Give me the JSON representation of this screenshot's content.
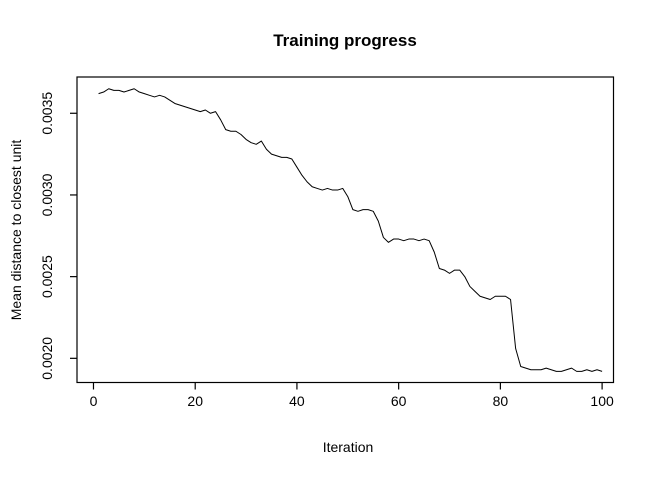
{
  "chart_data": {
    "type": "line",
    "title": "Training progress",
    "xlabel": "Iteration",
    "ylabel": "Mean distance to closest unit",
    "legend": "none",
    "grid": false,
    "line_color": "#000000",
    "background_color": "#ffffff",
    "xlim": [
      -3.24,
      102.24
    ],
    "ylim": [
      0.001852,
      0.003722
    ],
    "xticks": [
      {
        "v": 0,
        "label": "0"
      },
      {
        "v": 20,
        "label": "20"
      },
      {
        "v": 40,
        "label": "40"
      },
      {
        "v": 60,
        "label": "60"
      },
      {
        "v": 80,
        "label": "80"
      },
      {
        "v": 100,
        "label": "100"
      }
    ],
    "yticks": [
      {
        "v": 0.002,
        "label": "0.0020"
      },
      {
        "v": 0.0025,
        "label": "0.0025"
      },
      {
        "v": 0.003,
        "label": "0.0030"
      },
      {
        "v": 0.0035,
        "label": "0.0035"
      }
    ],
    "x": [
      1,
      2,
      3,
      4,
      5,
      6,
      7,
      8,
      9,
      10,
      11,
      12,
      13,
      14,
      15,
      16,
      17,
      18,
      19,
      20,
      21,
      22,
      23,
      24,
      25,
      26,
      27,
      28,
      29,
      30,
      31,
      32,
      33,
      34,
      35,
      36,
      37,
      38,
      39,
      40,
      41,
      42,
      43,
      44,
      45,
      46,
      47,
      48,
      49,
      50,
      51,
      52,
      53,
      54,
      55,
      56,
      57,
      58,
      59,
      60,
      61,
      62,
      63,
      64,
      65,
      66,
      67,
      68,
      69,
      70,
      71,
      72,
      73,
      74,
      75,
      76,
      77,
      78,
      79,
      80,
      81,
      82,
      83,
      84,
      85,
      86,
      87,
      88,
      89,
      90,
      91,
      92,
      93,
      94,
      95,
      96,
      97,
      98,
      99,
      100
    ],
    "values": [
      0.00362,
      0.00363,
      0.00365,
      0.00364,
      0.00364,
      0.00363,
      0.00364,
      0.00365,
      0.00363,
      0.00362,
      0.00361,
      0.0036,
      0.00361,
      0.0036,
      0.00358,
      0.00356,
      0.00355,
      0.00354,
      0.00353,
      0.00352,
      0.00351,
      0.00352,
      0.0035,
      0.00351,
      0.00346,
      0.0034,
      0.00339,
      0.00339,
      0.00337,
      0.00334,
      0.00332,
      0.00331,
      0.00333,
      0.00328,
      0.00325,
      0.00324,
      0.00323,
      0.00323,
      0.00322,
      0.00317,
      0.00312,
      0.00308,
      0.00305,
      0.00304,
      0.00303,
      0.00304,
      0.00303,
      0.00303,
      0.00304,
      0.00299,
      0.00291,
      0.0029,
      0.00291,
      0.00291,
      0.0029,
      0.00284,
      0.00274,
      0.00271,
      0.00273,
      0.00273,
      0.00272,
      0.00273,
      0.00273,
      0.00272,
      0.00273,
      0.00272,
      0.00265,
      0.00255,
      0.00254,
      0.00252,
      0.00254,
      0.00254,
      0.0025,
      0.00244,
      0.00241,
      0.00238,
      0.00237,
      0.00236,
      0.00238,
      0.00238,
      0.00238,
      0.00236,
      0.00206,
      0.00195,
      0.00194,
      0.00193,
      0.00193,
      0.00193,
      0.00194,
      0.00193,
      0.00192,
      0.00192,
      0.00193,
      0.00194,
      0.00192,
      0.00192,
      0.00193,
      0.00192,
      0.00193,
      0.00192
    ]
  }
}
